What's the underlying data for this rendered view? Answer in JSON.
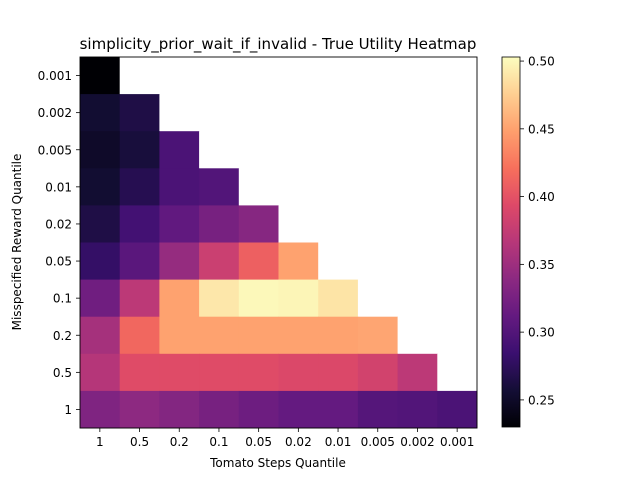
{
  "chart_data": {
    "type": "heatmap",
    "title": "simplicity_prior_wait_if_invalid - True Utility Heatmap",
    "xlabel": "Tomato Steps Quantile",
    "ylabel": "Misspecified Reward Quantile",
    "x_categories": [
      "1",
      "0.5",
      "0.2",
      "0.1",
      "0.05",
      "0.02",
      "0.01",
      "0.005",
      "0.002",
      "0.001"
    ],
    "y_categories": [
      "0.001",
      "0.002",
      "0.005",
      "0.01",
      "0.02",
      "0.05",
      "0.1",
      "0.2",
      "0.5",
      "1"
    ],
    "colormap": "magma",
    "vmin": 0.23,
    "vmax": 0.503,
    "colorbar_ticks": [
      0.25,
      0.3,
      0.35,
      0.4,
      0.45,
      0.5
    ],
    "colorbar_tick_labels": [
      "0.25",
      "0.30",
      "0.35",
      "0.40",
      "0.45",
      "0.50"
    ],
    "missing_color": "#ffffff",
    "values": [
      [
        0.23,
        null,
        null,
        null,
        null,
        null,
        null,
        null,
        null,
        null
      ],
      [
        0.255,
        0.265,
        null,
        null,
        null,
        null,
        null,
        null,
        null,
        null
      ],
      [
        0.25,
        0.26,
        0.295,
        null,
        null,
        null,
        null,
        null,
        null,
        null
      ],
      [
        0.255,
        0.27,
        0.295,
        0.3,
        null,
        null,
        null,
        null,
        null,
        null
      ],
      [
        0.265,
        0.29,
        0.31,
        0.325,
        0.335,
        null,
        null,
        null,
        null,
        null
      ],
      [
        0.28,
        0.305,
        0.345,
        0.38,
        0.41,
        0.45,
        null,
        null,
        null,
        null
      ],
      [
        0.32,
        0.37,
        0.45,
        0.49,
        0.5,
        0.498,
        0.488,
        null,
        null,
        null
      ],
      [
        0.355,
        0.415,
        0.45,
        0.45,
        0.45,
        0.45,
        0.45,
        0.452,
        null,
        null
      ],
      [
        0.365,
        0.395,
        0.395,
        0.395,
        0.395,
        0.392,
        0.392,
        0.385,
        0.37,
        null
      ],
      [
        0.33,
        0.34,
        0.333,
        0.325,
        0.318,
        0.312,
        0.312,
        0.302,
        0.3,
        0.295
      ]
    ]
  }
}
